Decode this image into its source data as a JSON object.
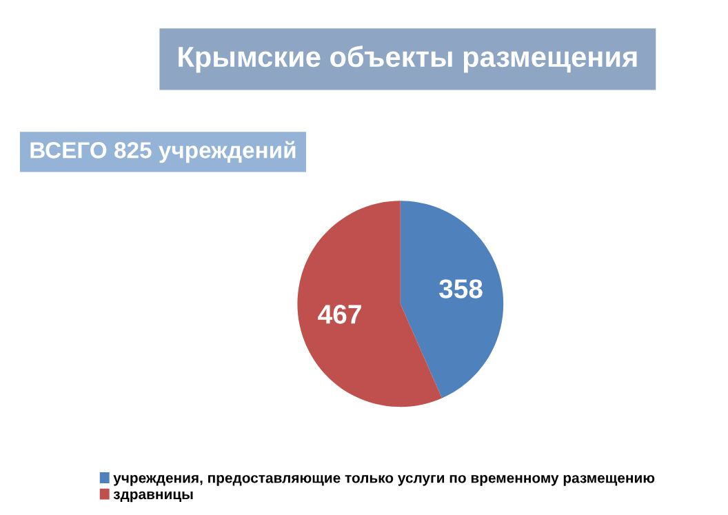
{
  "chart_data": {
    "type": "pie",
    "title": "Крымские объекты размещения",
    "subtitle": "ВСЕГО 825 учреждений",
    "categories": [
      "учреждения, предоставляющие только услуги по временному размещению",
      "здравницы"
    ],
    "values": [
      358,
      467
    ],
    "colors": [
      "#4f81bd",
      "#c0504d"
    ],
    "data_labels": true,
    "legend": "bottom"
  }
}
